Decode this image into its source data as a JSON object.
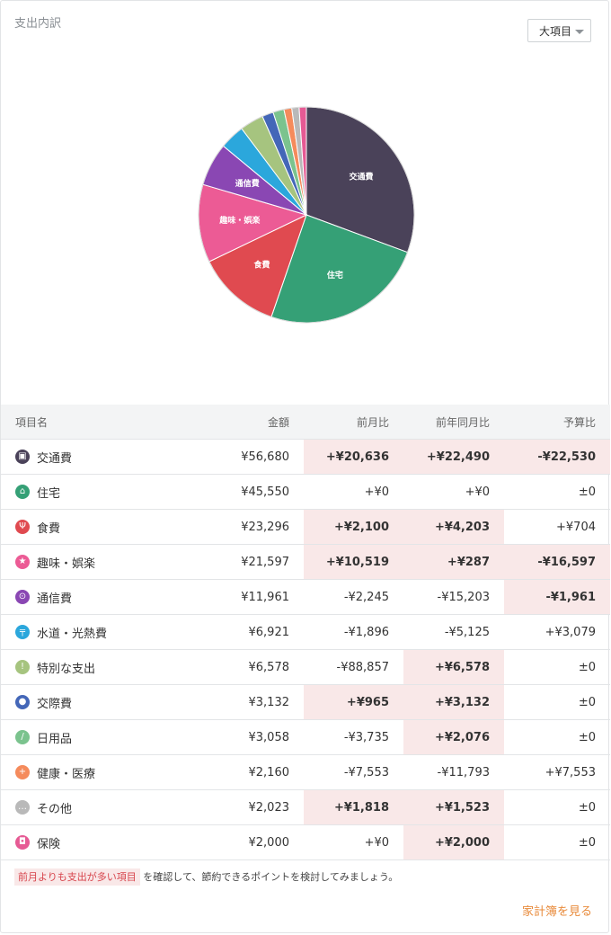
{
  "header": {
    "title": "支出内訳",
    "dropdown_value": "大項目"
  },
  "chart_data": {
    "type": "pie",
    "slices": [
      {
        "label": "交通費",
        "value": 56680,
        "color": "#4a4259",
        "shown_label": "交通費"
      },
      {
        "label": "住宅",
        "value": 45550,
        "color": "#35a076",
        "shown_label": "住宅"
      },
      {
        "label": "食費",
        "value": 23296,
        "color": "#e04a50",
        "shown_label": "食費"
      },
      {
        "label": "趣味・娯楽",
        "value": 21597,
        "color": "#ec5b95",
        "shown_label": "趣味・娯楽"
      },
      {
        "label": "通信費",
        "value": 11961,
        "color": "#8a47b3",
        "shown_label": "通信費"
      },
      {
        "label": "水道・光熱費",
        "value": 6921,
        "color": "#2ba7dc",
        "shown_label": ""
      },
      {
        "label": "特別な支出",
        "value": 6578,
        "color": "#a6c47f",
        "shown_label": ""
      },
      {
        "label": "交際費",
        "value": 3132,
        "color": "#4467b8",
        "shown_label": ""
      },
      {
        "label": "日用品",
        "value": 3058,
        "color": "#7bc38e",
        "shown_label": ""
      },
      {
        "label": "健康・医療",
        "value": 2160,
        "color": "#f58b5c",
        "shown_label": ""
      },
      {
        "label": "その他",
        "value": 2023,
        "color": "#b9b9b9",
        "shown_label": ""
      },
      {
        "label": "保険",
        "value": 2000,
        "color": "#e65a94",
        "shown_label": ""
      }
    ]
  },
  "table": {
    "headers": {
      "name": "項目名",
      "amount": "金額",
      "mom": "前月比",
      "yoy": "前年同月比",
      "budget": "予算比"
    },
    "rows": [
      {
        "name": "交通費",
        "amount": "¥56,680",
        "mom": "+¥20,636",
        "yoy": "+¥22,490",
        "budget": "-¥22,530",
        "icon": "train-icon",
        "icon_color": "#4a4259",
        "glyph": "▣"
      },
      {
        "name": "住宅",
        "amount": "¥45,550",
        "mom": "+¥0",
        "yoy": "+¥0",
        "budget": "±0",
        "icon": "house-icon",
        "icon_color": "#35a076",
        "glyph": "⌂"
      },
      {
        "name": "食費",
        "amount": "¥23,296",
        "mom": "+¥2,100",
        "yoy": "+¥4,203",
        "budget": "+¥704",
        "icon": "fork-knife-icon",
        "icon_color": "#e04a50",
        "glyph": "Ψ"
      },
      {
        "name": "趣味・娯楽",
        "amount": "¥21,597",
        "mom": "+¥10,519",
        "yoy": "+¥287",
        "budget": "-¥16,597",
        "icon": "star-icon",
        "icon_color": "#ec5b95",
        "glyph": "★"
      },
      {
        "name": "通信費",
        "amount": "¥11,961",
        "mom": "-¥2,245",
        "yoy": "-¥15,203",
        "budget": "-¥1,961",
        "icon": "antenna-icon",
        "icon_color": "#8a47b3",
        "glyph": "⊙"
      },
      {
        "name": "水道・光熱費",
        "amount": "¥6,921",
        "mom": "-¥1,896",
        "yoy": "-¥5,125",
        "budget": "+¥3,079",
        "icon": "faucet-icon",
        "icon_color": "#2ba7dc",
        "glyph": "╤"
      },
      {
        "name": "特別な支出",
        "amount": "¥6,578",
        "mom": "-¥88,857",
        "yoy": "+¥6,578",
        "budget": "±0",
        "icon": "exclamation-icon",
        "icon_color": "#a6c47f",
        "glyph": "!"
      },
      {
        "name": "交際費",
        "amount": "¥3,132",
        "mom": "+¥965",
        "yoy": "+¥3,132",
        "budget": "±0",
        "icon": "people-icon",
        "icon_color": "#4467b8",
        "glyph": "●"
      },
      {
        "name": "日用品",
        "amount": "¥3,058",
        "mom": "-¥3,735",
        "yoy": "+¥2,076",
        "budget": "±0",
        "icon": "brush-icon",
        "icon_color": "#7bc38e",
        "glyph": "/"
      },
      {
        "name": "健康・医療",
        "amount": "¥2,160",
        "mom": "-¥7,553",
        "yoy": "-¥11,793",
        "budget": "+¥7,553",
        "icon": "plus-icon",
        "icon_color": "#f58b5c",
        "glyph": "+"
      },
      {
        "name": "その他",
        "amount": "¥2,023",
        "mom": "+¥1,818",
        "yoy": "+¥1,523",
        "budget": "±0",
        "icon": "ellipsis-icon",
        "icon_color": "#b9b9b9",
        "glyph": "…"
      },
      {
        "name": "保険",
        "amount": "¥2,000",
        "mom": "+¥0",
        "yoy": "+¥2,000",
        "budget": "±0",
        "icon": "shield-icon",
        "icon_color": "#e65a94",
        "glyph": "◘"
      }
    ],
    "highlight": {
      "mom": [
        0,
        2,
        3,
        7,
        10
      ],
      "yoy": [
        0,
        2,
        3,
        6,
        7,
        8,
        10,
        11
      ],
      "budget": [
        0,
        3,
        4
      ]
    }
  },
  "footer": {
    "note_highlight": "前月よりも支出が多い項目",
    "note_rest": "を確認して、節約できるポイントを検討してみましょう。",
    "link_label": "家計簿を見る"
  },
  "colors": {
    "accent_orange": "#e88a3a",
    "negative_red": "#d7444c",
    "highlight_bg": "#f9e8e8"
  }
}
